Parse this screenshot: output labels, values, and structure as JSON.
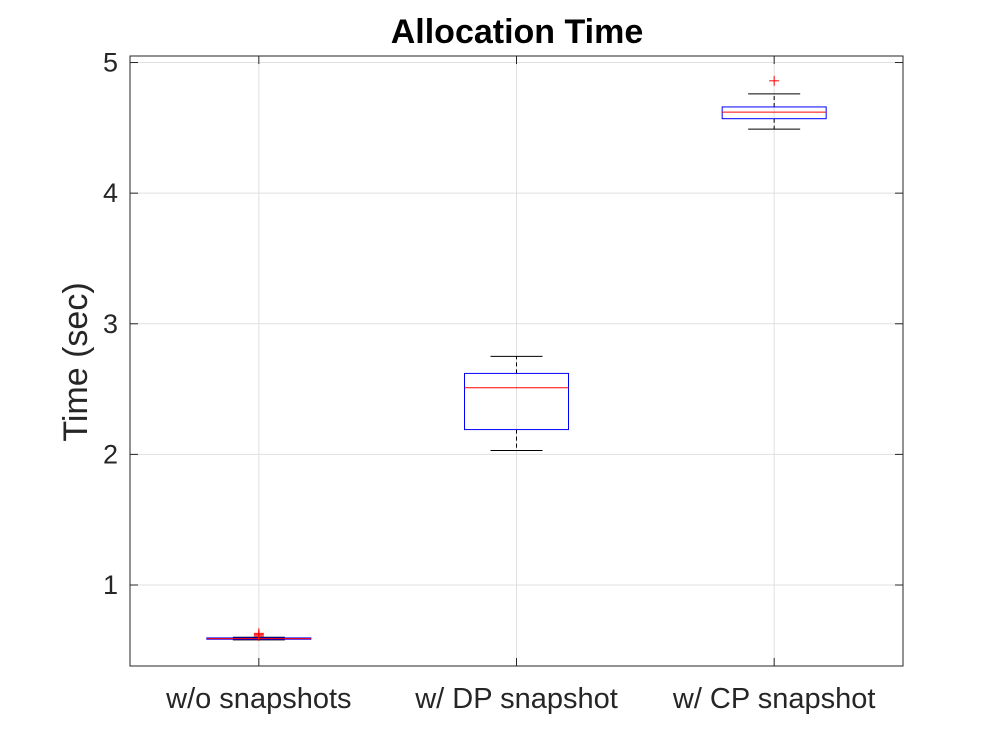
{
  "chart_data": {
    "type": "box",
    "title": "Allocation Time",
    "xlabel": "",
    "ylabel": "Time (sec)",
    "ylim": [
      0.38,
      5.05
    ],
    "yticks": [
      1,
      2,
      3,
      4,
      5
    ],
    "grid": true,
    "colors": {
      "box": "#0000ff",
      "median": "#ff0000",
      "whisker": "#000000",
      "outlier": "#ff0000",
      "grid": "#e0e0e0",
      "axis": "#262626"
    },
    "categories": [
      "w/o snapshots",
      "w/ DP snapshot",
      "w/ CP snapshot"
    ],
    "boxes": [
      {
        "category": "w/o snapshots",
        "min": 0.58,
        "q1": 0.585,
        "median": 0.59,
        "q3": 0.595,
        "max": 0.6,
        "outliers": [
          0.61,
          0.62,
          0.63
        ]
      },
      {
        "category": "w/ DP snapshot",
        "min": 2.03,
        "q1": 2.19,
        "median": 2.51,
        "q3": 2.62,
        "max": 2.75,
        "outliers": []
      },
      {
        "category": "w/ CP snapshot",
        "min": 4.49,
        "q1": 4.57,
        "median": 4.62,
        "q3": 4.66,
        "max": 4.76,
        "outliers": [
          4.86
        ]
      }
    ]
  }
}
